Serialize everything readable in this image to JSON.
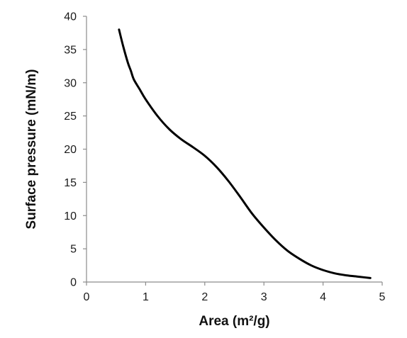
{
  "chart_data": {
    "type": "line",
    "title": "",
    "xlabel": "Area (m²/g)",
    "ylabel": "Surface pressure (mN/m)",
    "xlim": [
      0,
      5
    ],
    "ylim": [
      0,
      40
    ],
    "x_ticks": [
      "0",
      "1",
      "2",
      "3",
      "4",
      "5"
    ],
    "y_ticks": [
      "0",
      "5",
      "10",
      "15",
      "20",
      "25",
      "30",
      "35",
      "40"
    ],
    "grid": false,
    "legend": "none",
    "series": [
      {
        "color": "#000000",
        "x": [
          0.55,
          0.62,
          0.7,
          0.75,
          0.8,
          0.9,
          1.0,
          1.2,
          1.4,
          1.6,
          1.8,
          2.0,
          2.2,
          2.4,
          2.6,
          2.8,
          3.0,
          3.2,
          3.4,
          3.6,
          3.8,
          4.0,
          4.2,
          4.4,
          4.6,
          4.8
        ],
        "y": [
          38.0,
          35.5,
          33.0,
          31.8,
          30.5,
          29.0,
          27.5,
          25.0,
          23.0,
          21.5,
          20.3,
          19.0,
          17.3,
          15.2,
          12.8,
          10.3,
          8.2,
          6.3,
          4.7,
          3.5,
          2.5,
          1.8,
          1.3,
          1.0,
          0.8,
          0.6
        ]
      }
    ]
  }
}
